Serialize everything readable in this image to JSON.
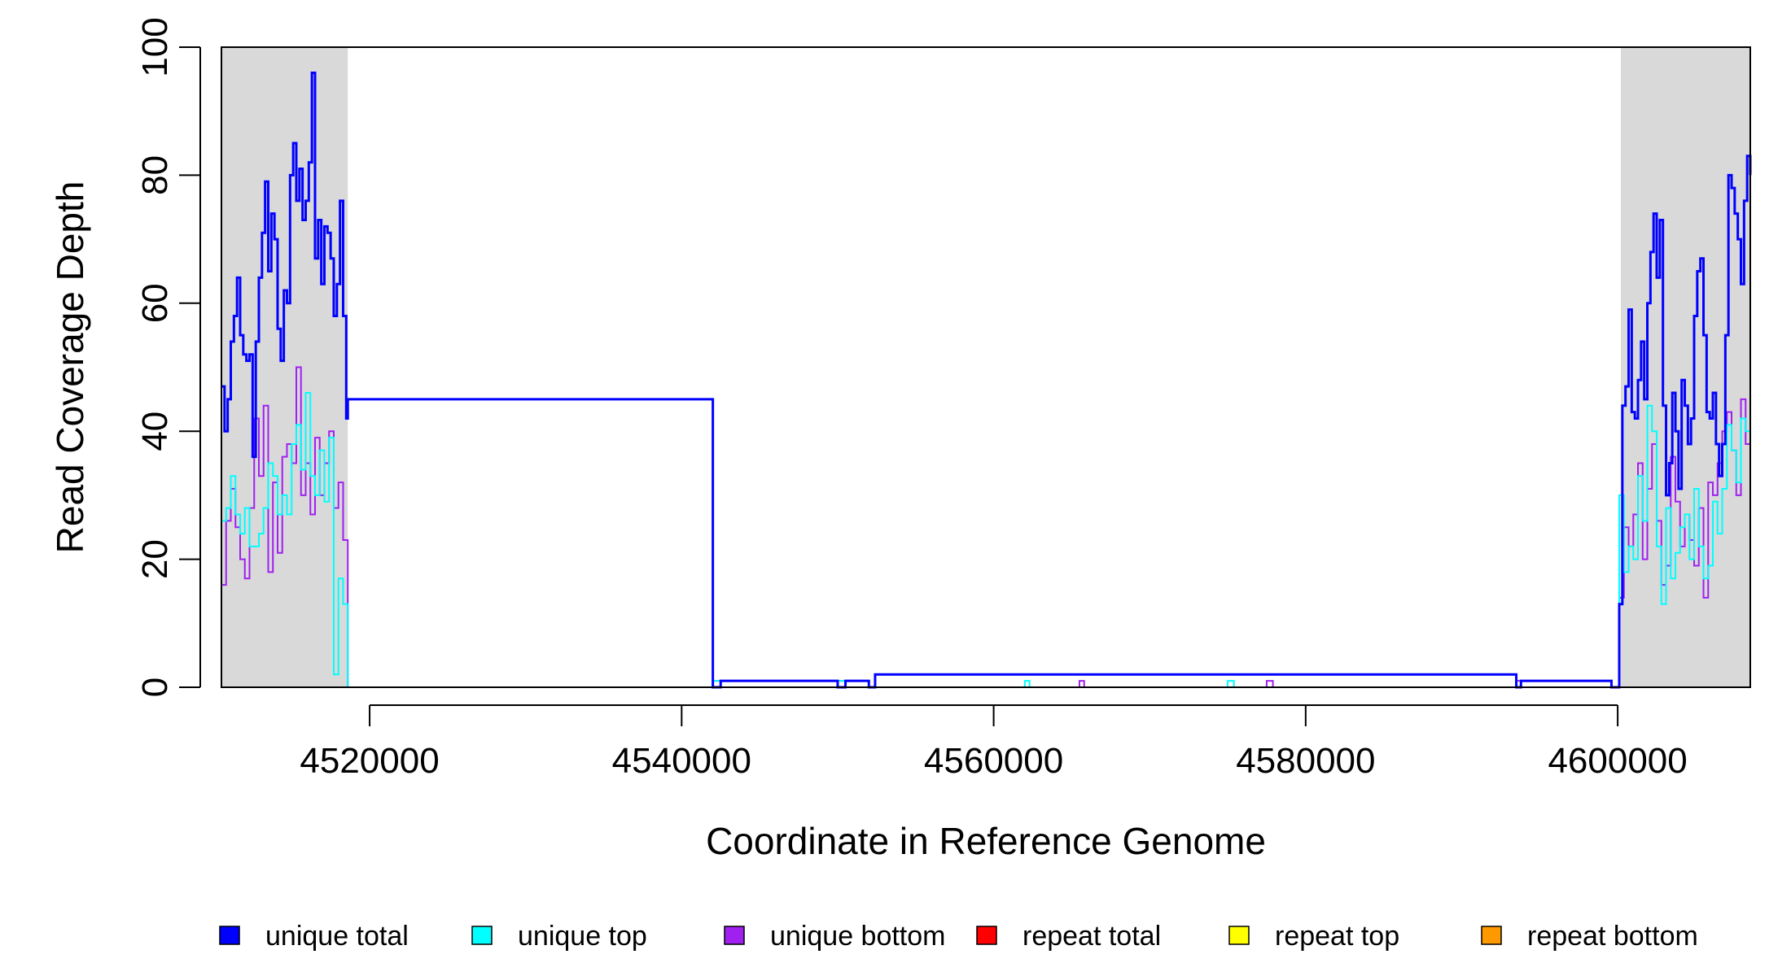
{
  "chart_data": {
    "type": "line",
    "title": "",
    "xlabel": "Coordinate in Reference Genome",
    "ylabel": "Read Coverage Depth",
    "xlim": [
      4510500,
      4608500
    ],
    "ylim": [
      0,
      100
    ],
    "x_ticks": [
      4520000,
      4540000,
      4560000,
      4580000,
      4600000
    ],
    "x_tick_labels": [
      "4520000",
      "4540000",
      "4560000",
      "4580000",
      "4600000"
    ],
    "y_ticks": [
      0,
      20,
      40,
      60,
      80,
      100
    ],
    "y_tick_labels": [
      "0",
      "20",
      "40",
      "60",
      "80",
      "100"
    ],
    "grid": false,
    "legend_position": "bottom",
    "shaded_regions": [
      {
        "x_start": 4510500,
        "x_end": 4518600,
        "color": "#d9d9d9"
      },
      {
        "x_start": 4600200,
        "x_end": 4608500,
        "color": "#d9d9d9"
      }
    ],
    "series": [
      {
        "name": "unique total",
        "color": "#0000ff",
        "x": [
          4510500,
          4510700,
          4510900,
          4511100,
          4511300,
          4511500,
          4511700,
          4511900,
          4512100,
          4512300,
          4512500,
          4512700,
          4512900,
          4513100,
          4513300,
          4513500,
          4513700,
          4513900,
          4514100,
          4514300,
          4514500,
          4514700,
          4514900,
          4515100,
          4515300,
          4515500,
          4515700,
          4515900,
          4516100,
          4516300,
          4516500,
          4516700,
          4516900,
          4517100,
          4517300,
          4517500,
          4517700,
          4517900,
          4518100,
          4518300,
          4518500,
          4518600,
          4542000,
          4542500,
          4550000,
          4550500,
          4552000,
          4552400,
          4593500,
          4593800,
          4599600,
          4600100,
          4600300,
          4600500,
          4600700,
          4600900,
          4601100,
          4601300,
          4601500,
          4601700,
          4601900,
          4602100,
          4602300,
          4602500,
          4602700,
          4602900,
          4603100,
          4603300,
          4603500,
          4603700,
          4603900,
          4604100,
          4604300,
          4604500,
          4604700,
          4604900,
          4605100,
          4605300,
          4605500,
          4605700,
          4605900,
          4606100,
          4606300,
          4606500,
          4606700,
          4606900,
          4607100,
          4607300,
          4607500,
          4607700,
          4607900,
          4608100,
          4608300,
          4608500
        ],
        "values": [
          47,
          40,
          45,
          54,
          58,
          64,
          55,
          52,
          51,
          52,
          36,
          54,
          64,
          71,
          79,
          65,
          74,
          70,
          56,
          51,
          62,
          60,
          80,
          85,
          76,
          81,
          73,
          76,
          82,
          96,
          67,
          73,
          63,
          72,
          71,
          67,
          58,
          63,
          76,
          58,
          42,
          45,
          0,
          1,
          0,
          1,
          0,
          2,
          0,
          1,
          0,
          13,
          44,
          47,
          59,
          43,
          42,
          48,
          54,
          45,
          60,
          68,
          74,
          64,
          73,
          44,
          30,
          35,
          46,
          40,
          31,
          48,
          44,
          38,
          42,
          58,
          65,
          67,
          55,
          43,
          42,
          46,
          38,
          33,
          38,
          55,
          80,
          78,
          74,
          70,
          63,
          76,
          83,
          80
        ]
      },
      {
        "name": "unique top",
        "color": "#00ffff",
        "x": [
          4510500,
          4510800,
          4511100,
          4511400,
          4511700,
          4512000,
          4512300,
          4512600,
          4512900,
          4513200,
          4513500,
          4513800,
          4514100,
          4514400,
          4514700,
          4515000,
          4515300,
          4515600,
          4515900,
          4516200,
          4516500,
          4516800,
          4517100,
          4517400,
          4517700,
          4518000,
          4518300,
          4518600,
          4542000,
          4542500,
          4550000,
          4550500,
          4562000,
          4562300,
          4575000,
          4575400,
          4600100,
          4600400,
          4600700,
          4601000,
          4601300,
          4601600,
          4601900,
          4602200,
          4602500,
          4602800,
          4603100,
          4603400,
          4603700,
          4604000,
          4604300,
          4604600,
          4604900,
          4605200,
          4605500,
          4605800,
          4606100,
          4606400,
          4606700,
          4607000,
          4607300,
          4607600,
          4607900,
          4608200,
          4608500
        ],
        "values": [
          26,
          28,
          33,
          27,
          24,
          28,
          22,
          22,
          24,
          28,
          35,
          33,
          27,
          30,
          27,
          38,
          41,
          34,
          46,
          33,
          30,
          37,
          29,
          39,
          2,
          17,
          13,
          0,
          1,
          0,
          1,
          0,
          1,
          0,
          1,
          0,
          30,
          18,
          22,
          20,
          33,
          26,
          44,
          40,
          22,
          13,
          28,
          17,
          21,
          25,
          27,
          20,
          31,
          22,
          17,
          19,
          29,
          24,
          31,
          41,
          37,
          32,
          42,
          40,
          44
        ]
      },
      {
        "name": "unique bottom",
        "color": "#a020f0",
        "x": [
          4510500,
          4510800,
          4511100,
          4511400,
          4511700,
          4512000,
          4512300,
          4512600,
          4512900,
          4513200,
          4513500,
          4513800,
          4514100,
          4514400,
          4514700,
          4515000,
          4515300,
          4515600,
          4515900,
          4516200,
          4516500,
          4516800,
          4517100,
          4517400,
          4517700,
          4518000,
          4518300,
          4518600,
          4542000,
          4542500,
          4550000,
          4550500,
          4565500,
          4565800,
          4577500,
          4577900,
          4593500,
          4593800,
          4600100,
          4600400,
          4600700,
          4601000,
          4601300,
          4601600,
          4601900,
          4602200,
          4602500,
          4602800,
          4603100,
          4603400,
          4603700,
          4604000,
          4604300,
          4604600,
          4604900,
          4605200,
          4605500,
          4605800,
          4606100,
          4606400,
          4606700,
          4607000,
          4607300,
          4607600,
          4607900,
          4608200,
          4608500
        ],
        "values": [
          16,
          26,
          31,
          25,
          20,
          17,
          28,
          42,
          33,
          44,
          18,
          32,
          21,
          36,
          38,
          35,
          50,
          30,
          35,
          27,
          39,
          30,
          35,
          40,
          28,
          32,
          23,
          0,
          1,
          0,
          1,
          0,
          1,
          0,
          1,
          0,
          1,
          0,
          14,
          25,
          22,
          27,
          35,
          20,
          31,
          38,
          26,
          16,
          19,
          36,
          29,
          22,
          27,
          23,
          19,
          28,
          14,
          32,
          30,
          35,
          40,
          43,
          37,
          30,
          45,
          38,
          45
        ]
      },
      {
        "name": "repeat total",
        "color": "#ff0000",
        "x": [
          4510500,
          4608500
        ],
        "values": [
          0,
          0
        ]
      },
      {
        "name": "repeat top",
        "color": "#ffff00",
        "x": [
          4510500,
          4608500
        ],
        "values": [
          0,
          0
        ]
      },
      {
        "name": "repeat bottom",
        "color": "#ff9900",
        "x": [
          4510500,
          4608500
        ],
        "values": [
          0,
          0
        ]
      }
    ]
  }
}
